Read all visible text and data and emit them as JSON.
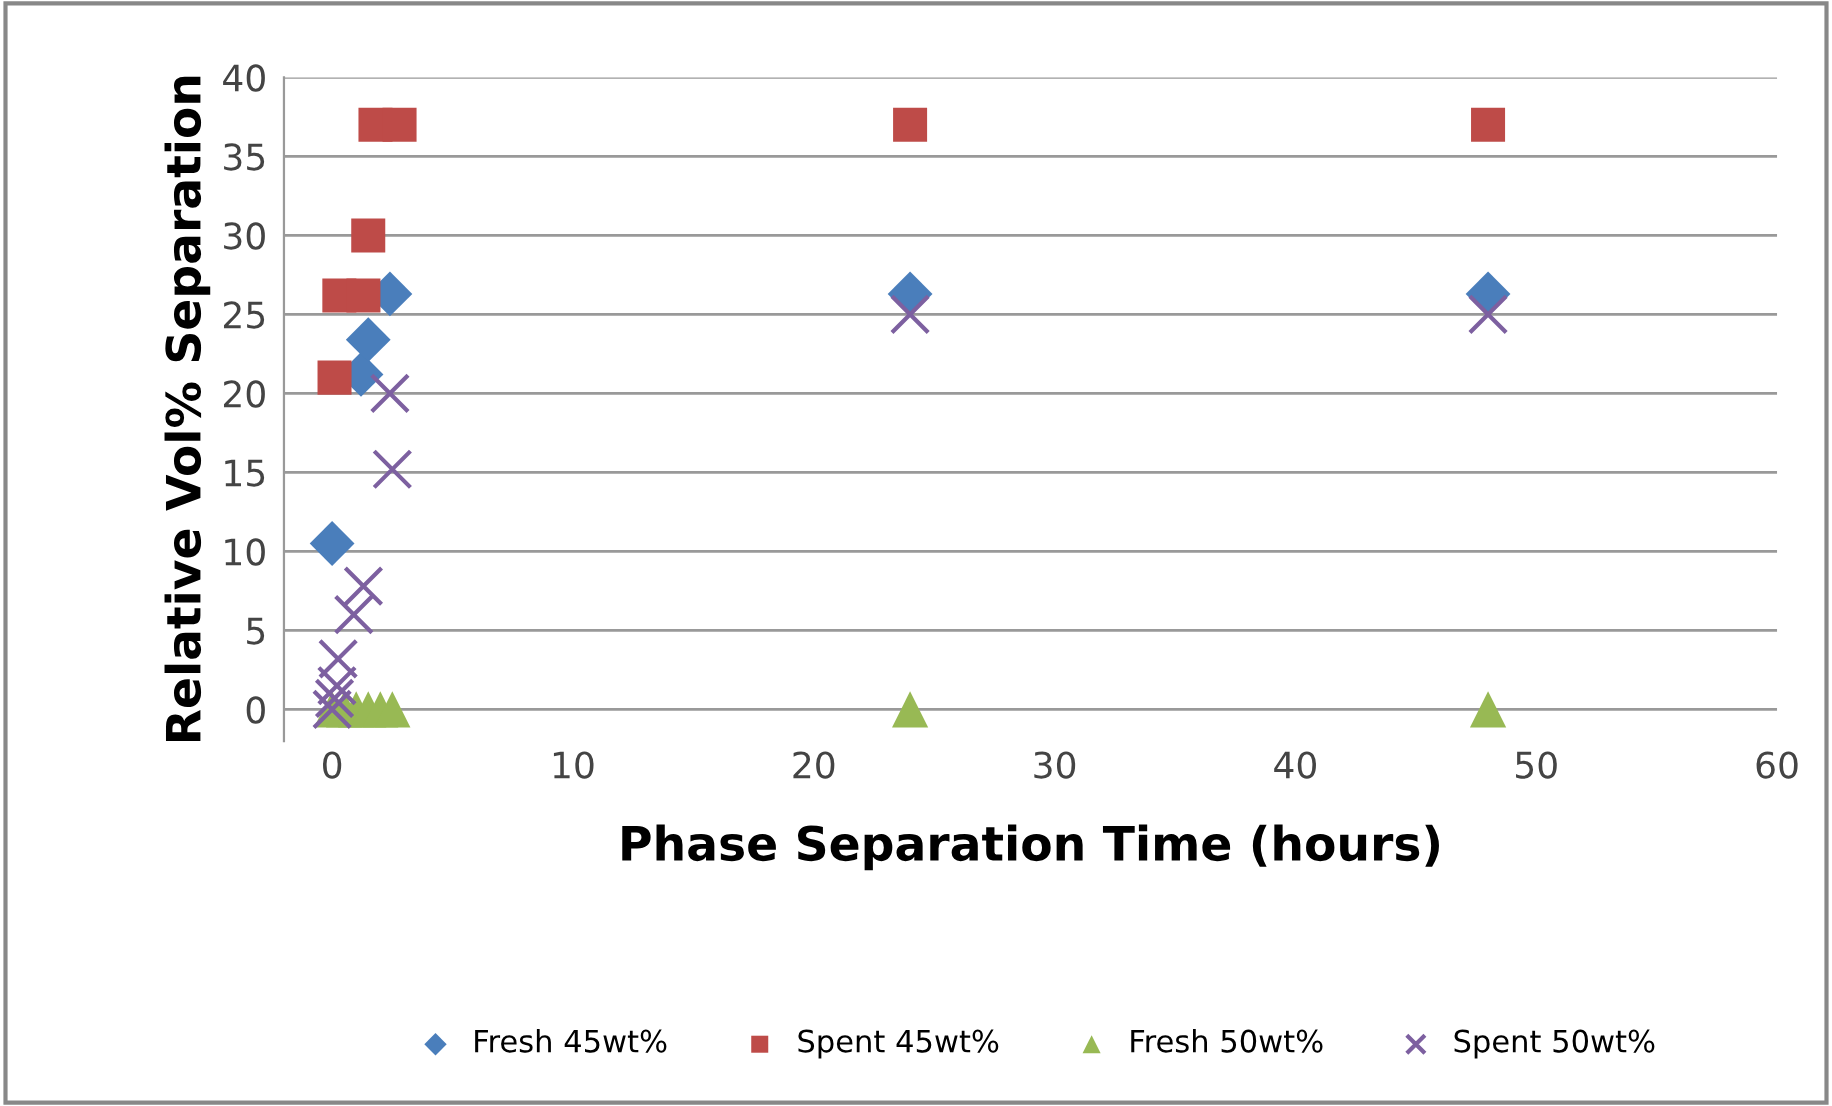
{
  "chart_data": {
    "type": "scatter",
    "xlabel": "Phase Separation Time (hours)",
    "ylabel": "Relative Vol% Separation",
    "xlim": [
      -2,
      60
    ],
    "ylim": [
      -2,
      40
    ],
    "xticks": [
      0,
      10,
      20,
      30,
      40,
      50,
      60
    ],
    "yticks": [
      0,
      5,
      10,
      15,
      20,
      25,
      30,
      35,
      40
    ],
    "grid": "y",
    "legend": "bottom",
    "series": [
      {
        "name": "Fresh 45wt%",
        "color": "#4a7ebb",
        "marker": "diamond",
        "x": [
          0,
          1.2,
          1.5,
          2.4,
          24,
          48
        ],
        "values": [
          10.5,
          21.2,
          23.4,
          26.3,
          26.3,
          26.3
        ]
      },
      {
        "name": "Spent 45wt%",
        "color": "#be4b48",
        "marker": "square",
        "x": [
          0.1,
          0.3,
          1.3,
          1.5,
          1.8,
          2.8,
          24,
          48
        ],
        "values": [
          21,
          26.2,
          26.2,
          30,
          37,
          37,
          37,
          37
        ]
      },
      {
        "name": "Fresh 50wt%",
        "color": "#98b954",
        "marker": "triangle",
        "x": [
          0,
          0.5,
          1,
          1.5,
          2,
          2.5,
          24,
          48
        ],
        "values": [
          0,
          0,
          0,
          0,
          0,
          0,
          0,
          0
        ]
      },
      {
        "name": "Spent 50wt%",
        "color": "#7d60a0",
        "marker": "cross",
        "x": [
          0,
          0.1,
          0.2,
          0.25,
          0.9,
          1.3,
          2.5,
          2.4,
          24,
          48
        ],
        "values": [
          0,
          0.7,
          1.5,
          3.2,
          6,
          7.8,
          15.2,
          20,
          25,
          25
        ]
      }
    ]
  }
}
